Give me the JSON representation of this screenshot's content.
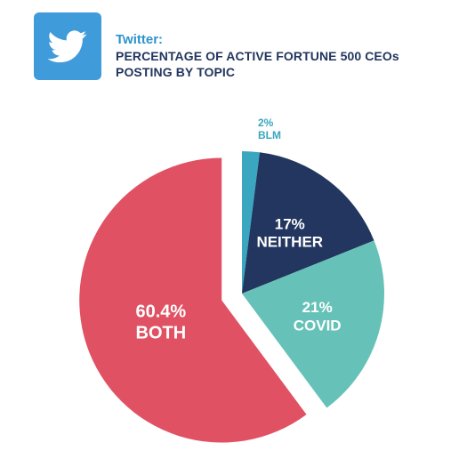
{
  "header": {
    "brand": "Twitter:",
    "headline_lines": [
      "PERCENTAGE OF ACTIVE FORTUNE 500 CEOs",
      "POSTING BY TOPIC"
    ],
    "logo_icon": "twitter-bird-icon"
  },
  "colors": {
    "logo_bg": "#3f9bd9",
    "brand_text": "#2c93cd",
    "headline_text": "#22365f"
  },
  "chart_data": {
    "type": "pie",
    "title": "PERCENTAGE OF ACTIVE FORTUNE 500 CEOs POSTING BY TOPIC",
    "slices": [
      {
        "key": "blm",
        "label": "BLM",
        "value": 2,
        "value_text": "2%",
        "color": "#3aa6bf",
        "exploded": false
      },
      {
        "key": "neither",
        "label": "NEITHER",
        "value": 17,
        "value_text": "17%",
        "color": "#22365f",
        "exploded": false
      },
      {
        "key": "covid",
        "label": "COVID",
        "value": 21,
        "value_text": "21%",
        "color": "#66c2b8",
        "exploded": false
      },
      {
        "key": "both",
        "label": "BOTH",
        "value": 60.4,
        "value_text": "60.4%",
        "color": "#e05263",
        "exploded": true
      }
    ]
  }
}
